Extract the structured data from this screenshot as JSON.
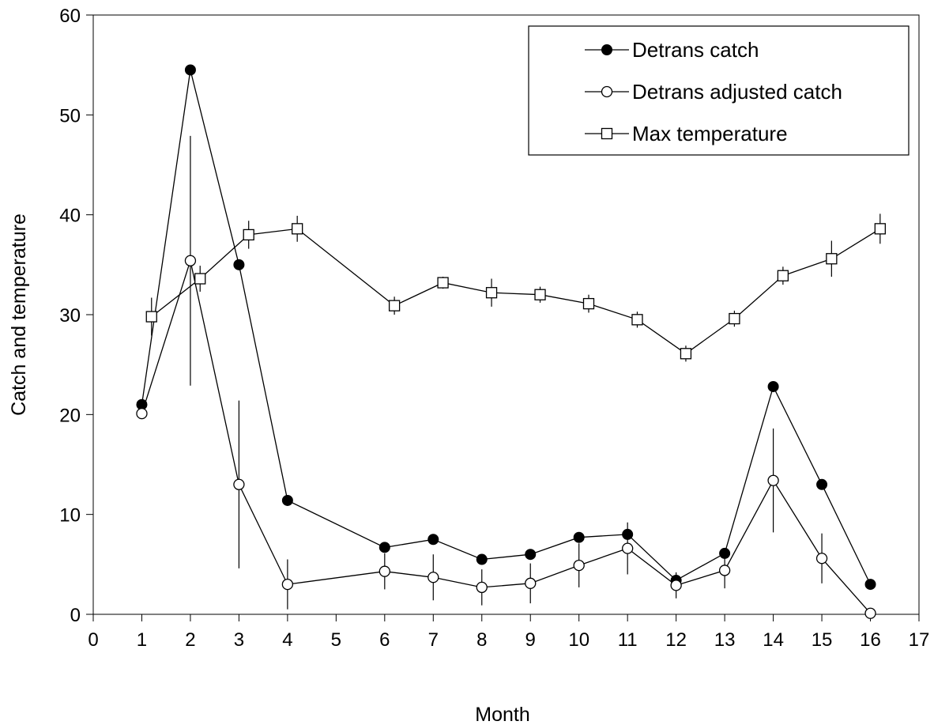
{
  "chart_data": {
    "type": "line",
    "xlabel": "Month",
    "ylabel": "Catch and temperature",
    "xlim": [
      0,
      17
    ],
    "ylim": [
      0,
      60
    ],
    "xticks": [
      "0",
      "1",
      "2",
      "3",
      "4",
      "5",
      "6",
      "7",
      "8",
      "9",
      "10",
      "11",
      "12",
      "13",
      "14",
      "15",
      "16",
      "17"
    ],
    "yticks": [
      "0",
      "10",
      "20",
      "30",
      "40",
      "50",
      "60"
    ],
    "grid": false,
    "legend": "top-right",
    "series": [
      {
        "name": "Detrans catch",
        "marker": "filled-circle",
        "color": "#000000",
        "points": [
          {
            "x": 1,
            "y": 21.0,
            "err": null
          },
          {
            "x": 2,
            "y": 54.5,
            "err": null
          },
          {
            "x": 3,
            "y": 35.0,
            "err": null
          },
          {
            "x": 4,
            "y": 11.4,
            "err": null
          },
          {
            "x": 6,
            "y": 6.7,
            "err": null
          },
          {
            "x": 7,
            "y": 7.5,
            "err": null
          },
          {
            "x": 8,
            "y": 5.5,
            "err": null
          },
          {
            "x": 9,
            "y": 6.0,
            "err": null
          },
          {
            "x": 10,
            "y": 7.7,
            "err": null
          },
          {
            "x": 11,
            "y": 8.0,
            "err": null
          },
          {
            "x": 12,
            "y": 3.4,
            "err": null
          },
          {
            "x": 13,
            "y": 6.1,
            "err": null
          },
          {
            "x": 14,
            "y": 22.8,
            "err": null
          },
          {
            "x": 15,
            "y": 13.0,
            "err": null
          },
          {
            "x": 16,
            "y": 3.0,
            "err": null
          }
        ]
      },
      {
        "name": "Detrans adjusted catch",
        "marker": "open-circle",
        "color": "#000000",
        "points": [
          {
            "x": 1,
            "y": 20.1,
            "err": null
          },
          {
            "x": 2,
            "y": 35.4,
            "err": 12.5
          },
          {
            "x": 3,
            "y": 13.0,
            "err": 8.4
          },
          {
            "x": 4,
            "y": 3.0,
            "err": 2.5
          },
          {
            "x": 6,
            "y": 4.3,
            "err": 1.8
          },
          {
            "x": 7,
            "y": 3.7,
            "err": 2.3
          },
          {
            "x": 8,
            "y": 2.7,
            "err": 1.8
          },
          {
            "x": 9,
            "y": 3.1,
            "err": 2.0
          },
          {
            "x": 10,
            "y": 4.9,
            "err": 2.2
          },
          {
            "x": 11,
            "y": 6.6,
            "err": 2.6
          },
          {
            "x": 12,
            "y": 2.9,
            "err": 1.3
          },
          {
            "x": 13,
            "y": 4.4,
            "err": 1.8
          },
          {
            "x": 14,
            "y": 13.4,
            "err": 5.2
          },
          {
            "x": 15,
            "y": 5.6,
            "err": 2.5
          },
          {
            "x": 16,
            "y": 0.1,
            "err": null
          }
        ]
      },
      {
        "name": "Max temperature",
        "marker": "open-square",
        "color": "#000000",
        "points": [
          {
            "x": 1.2,
            "y": 29.8,
            "err": 1.9
          },
          {
            "x": 2.2,
            "y": 33.6,
            "err": 1.3
          },
          {
            "x": 3.2,
            "y": 38.0,
            "err": 1.4
          },
          {
            "x": 4.2,
            "y": 38.6,
            "err": 1.3
          },
          {
            "x": 6.2,
            "y": 30.9,
            "err": 0.9
          },
          {
            "x": 7.2,
            "y": 33.2,
            "err": 0.6
          },
          {
            "x": 8.2,
            "y": 32.2,
            "err": 1.4
          },
          {
            "x": 9.2,
            "y": 32.0,
            "err": 0.8
          },
          {
            "x": 10.2,
            "y": 31.1,
            "err": 0.9
          },
          {
            "x": 11.2,
            "y": 29.5,
            "err": 0.8
          },
          {
            "x": 12.2,
            "y": 26.1,
            "err": 0.8
          },
          {
            "x": 13.2,
            "y": 29.6,
            "err": 0.8
          },
          {
            "x": 14.2,
            "y": 33.9,
            "err": 0.9
          },
          {
            "x": 15.2,
            "y": 35.6,
            "err": 1.8
          },
          {
            "x": 16.2,
            "y": 38.6,
            "err": 1.5
          }
        ]
      }
    ]
  }
}
